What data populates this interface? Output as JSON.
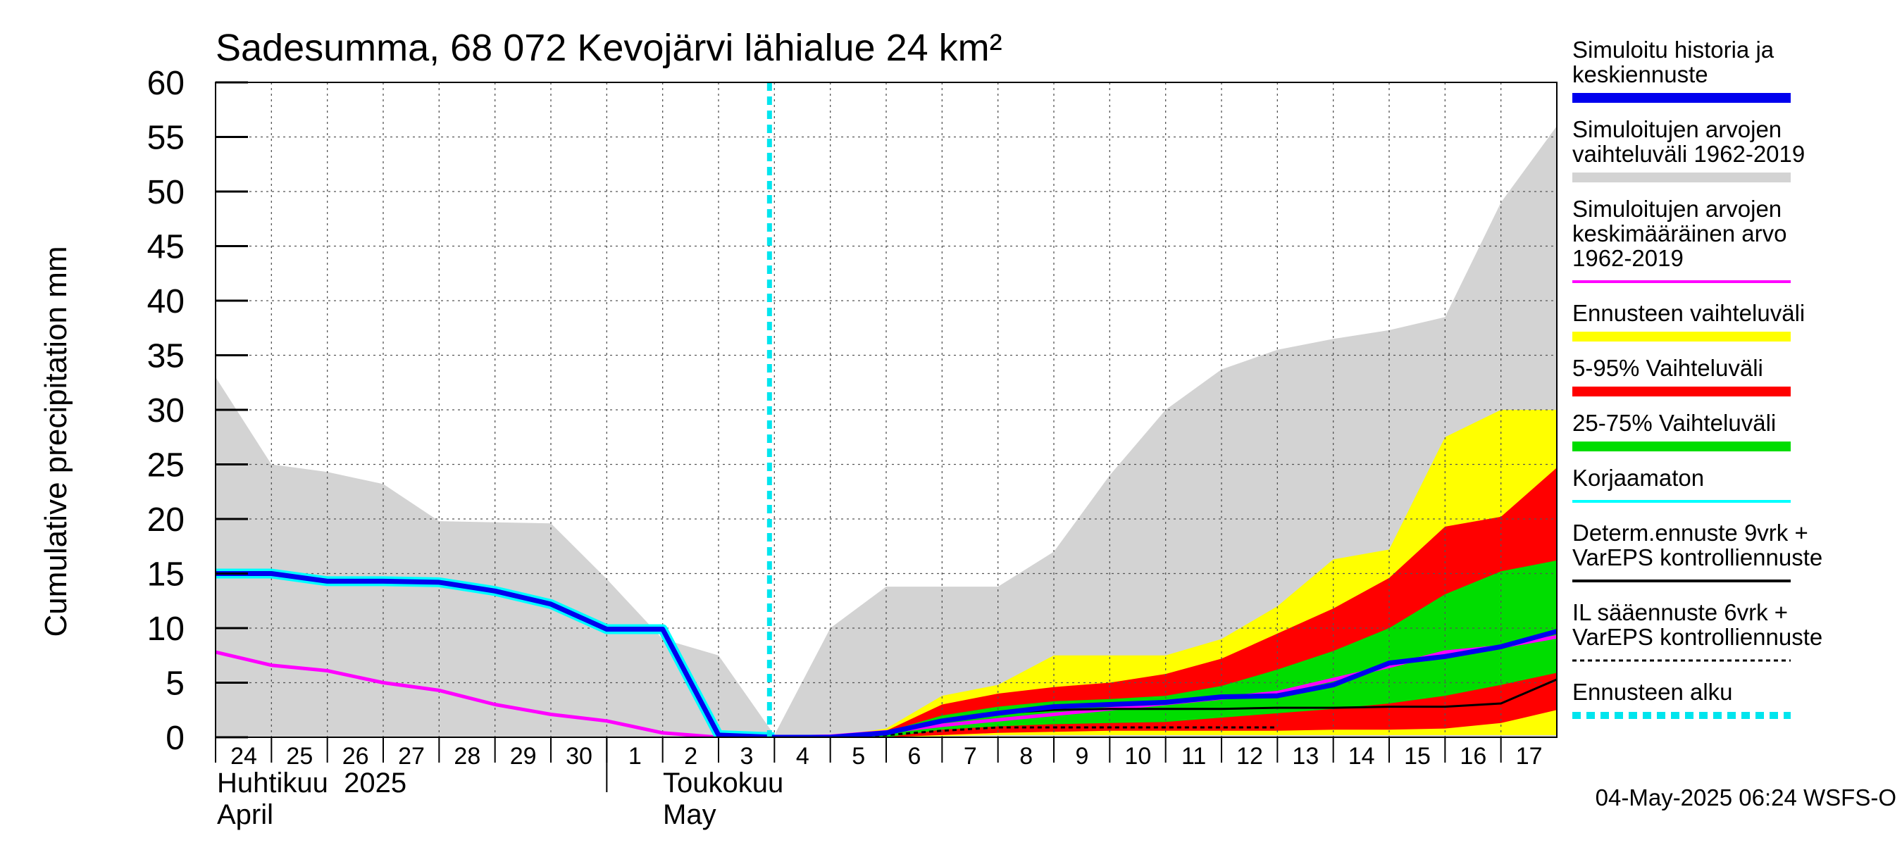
{
  "chart_data": {
    "type": "area",
    "title": "Sadesumma, 68 072 Kevojärvi lähialue 24 km²",
    "ylabel": "Cumulative precipitation   mm",
    "ylim": [
      0,
      60
    ],
    "yticks": [
      0,
      5,
      10,
      15,
      20,
      25,
      30,
      35,
      40,
      45,
      50,
      55,
      60
    ],
    "xlim": [
      0,
      24
    ],
    "x_tick_labels": [
      "24",
      "25",
      "26",
      "27",
      "28",
      "29",
      "30",
      "1",
      "2",
      "3",
      "4",
      "5",
      "6",
      "7",
      "8",
      "9",
      "10",
      "11",
      "12",
      "13",
      "14",
      "15",
      "16",
      "17"
    ],
    "month_labels": [
      {
        "fi": "Huhtikuu  2025",
        "en": "April"
      },
      {
        "fi": "Toukokuu",
        "en": "May"
      }
    ],
    "month_boundary_x": 7,
    "forecast_start_x": 10,
    "grid": true,
    "legend_position": "right",
    "footer": "04-May-2025 06:24 WSFS-O",
    "legend": [
      {
        "id": "sim",
        "label": [
          "Simuloitu historia ja",
          "keskiennuste"
        ],
        "color": "#0000ee",
        "style": "thick"
      },
      {
        "id": "hist_range",
        "label": [
          "Simuloitujen arvojen",
          "vaihteluväli 1962-2019"
        ],
        "color": "#d3d3d3",
        "style": "thick"
      },
      {
        "id": "hist_mean",
        "label": [
          "Simuloitujen arvojen",
          "keskimääräinen arvo",
          "   1962-2019"
        ],
        "color": "#ff00ff",
        "style": "line"
      },
      {
        "id": "ens_range",
        "label": [
          "Ennusteen vaihteluväli"
        ],
        "color": "#ffff00",
        "style": "thick"
      },
      {
        "id": "p5_95",
        "label": [
          "5-95% Vaihteluväli"
        ],
        "color": "#ff0000",
        "style": "thick"
      },
      {
        "id": "p25_75",
        "label": [
          "25-75% Vaihteluväli"
        ],
        "color": "#00dd00",
        "style": "thick"
      },
      {
        "id": "uncorr",
        "label": [
          "Korjaamaton"
        ],
        "color": "#00ffff",
        "style": "line"
      },
      {
        "id": "determ",
        "label": [
          "Determ.ennuste 9vrk +",
          "VarEPS kontrolliennuste"
        ],
        "color": "#000000",
        "style": "line"
      },
      {
        "id": "il",
        "label": [
          "IL sääennuste 6vrk  +",
          "  VarEPS kontrolliennuste"
        ],
        "color": "#000000",
        "style": "dashed"
      },
      {
        "id": "fstart",
        "label": [
          "Ennusteen alku"
        ],
        "color": "#00e5ee",
        "style": "dotted"
      }
    ],
    "series": {
      "hist_range": {
        "x": [
          0,
          1,
          2,
          3,
          4,
          5,
          6,
          7,
          8,
          9,
          10,
          11,
          12,
          13,
          14,
          15,
          16,
          17,
          18,
          19,
          20,
          21,
          22,
          23,
          24
        ],
        "upper": [
          33,
          25,
          24.3,
          23.2,
          19.8,
          19.7,
          19.6,
          14.5,
          9,
          7.5,
          0.2,
          10,
          13.8,
          13.8,
          13.8,
          17,
          24,
          30,
          33.7,
          35.5,
          36.5,
          37.3,
          38.5,
          49,
          56
        ],
        "lower": [
          0,
          0,
          0,
          0,
          0,
          0,
          0,
          0,
          0,
          0,
          0,
          0,
          0,
          0,
          0,
          0,
          0,
          0,
          0,
          0,
          0,
          0,
          0,
          0,
          0
        ]
      },
      "hist_mean": {
        "x": [
          0,
          1,
          2,
          3,
          4,
          5,
          6,
          7,
          8,
          9,
          10,
          11,
          12,
          13,
          14,
          15,
          16,
          17,
          18,
          19,
          20,
          21,
          22,
          23,
          24
        ],
        "y": [
          7.8,
          6.6,
          6.1,
          5,
          4.3,
          3,
          2.1,
          1.5,
          0.4,
          0,
          0,
          0.1,
          0.5,
          1.1,
          1.6,
          2.1,
          2.6,
          3.1,
          3.6,
          4.1,
          5.3,
          6.5,
          7.8,
          8.3,
          9.2
        ]
      },
      "ens_range": {
        "x": [
          11,
          12,
          13,
          14,
          15,
          16,
          17,
          18,
          19,
          20,
          21,
          22,
          23,
          24
        ],
        "upper": [
          0.1,
          0.8,
          3.8,
          4.8,
          7.5,
          7.5,
          7.5,
          9,
          12,
          16.3,
          17.2,
          27.5,
          30,
          30
        ],
        "lower": [
          0,
          0,
          0.1,
          0.2,
          0.2,
          0.2,
          0.2,
          0.2,
          0.2,
          0.2,
          0.2,
          0.2,
          0.2,
          0.2
        ]
      },
      "p5_95": {
        "x": [
          11,
          12,
          13,
          14,
          15,
          16,
          17,
          18,
          19,
          20,
          21,
          22,
          23,
          24
        ],
        "upper": [
          0.1,
          0.6,
          3,
          4,
          4.6,
          5,
          5.8,
          7.2,
          9.5,
          11.8,
          14.6,
          19.3,
          20.2,
          24.7
        ],
        "lower": [
          0,
          0,
          0.2,
          0.4,
          0.5,
          0.6,
          0.6,
          0.6,
          0.6,
          0.7,
          0.7,
          0.8,
          1.3,
          2.5
        ]
      },
      "p25_75": {
        "x": [
          11,
          12,
          13,
          14,
          15,
          16,
          17,
          18,
          19,
          20,
          21,
          22,
          23,
          24
        ],
        "upper": [
          0.1,
          0.5,
          2,
          2.8,
          3.3,
          3.5,
          3.8,
          4.7,
          6.2,
          7.9,
          10,
          13.1,
          15.2,
          16.2
        ],
        "lower": [
          0,
          0,
          0.7,
          1,
          1.2,
          1.3,
          1.4,
          1.8,
          2.2,
          2.6,
          3.1,
          3.8,
          4.8,
          5.9
        ]
      },
      "sim": {
        "x": [
          0,
          1,
          2,
          3,
          4,
          5,
          6,
          7,
          8,
          9,
          10,
          11,
          12,
          13,
          14,
          15,
          16,
          17,
          18,
          19,
          20,
          21,
          22,
          23,
          24
        ],
        "y": [
          15,
          15,
          14.3,
          14.3,
          14.2,
          13.4,
          12.2,
          9.9,
          9.9,
          0.2,
          0,
          0,
          0.4,
          1.5,
          2.2,
          2.8,
          3,
          3.2,
          3.7,
          3.8,
          4.8,
          6.8,
          7.4,
          8.3,
          9.7
        ]
      },
      "uncorr": {
        "x": [
          0,
          1,
          2,
          3,
          4,
          5,
          6,
          7,
          8,
          9,
          10
        ],
        "y": [
          15,
          15,
          14.3,
          14.3,
          14.2,
          13.4,
          12.2,
          9.9,
          9.9,
          0.2,
          0
        ]
      },
      "determ": {
        "x": [
          10,
          11,
          12,
          13,
          14,
          15,
          16,
          17,
          18,
          19,
          20,
          21,
          22,
          23,
          24
        ],
        "y": [
          0,
          0,
          0.4,
          1.6,
          2.2,
          2.5,
          2.6,
          2.6,
          2.6,
          2.7,
          2.7,
          2.8,
          2.8,
          3.1,
          5.3
        ]
      },
      "il": {
        "x": [
          10,
          11,
          12,
          13,
          14,
          15,
          16,
          17,
          18,
          19
        ],
        "y": [
          0,
          0,
          0.2,
          0.6,
          0.9,
          0.9,
          0.9,
          0.9,
          0.9,
          0.9
        ]
      }
    }
  }
}
